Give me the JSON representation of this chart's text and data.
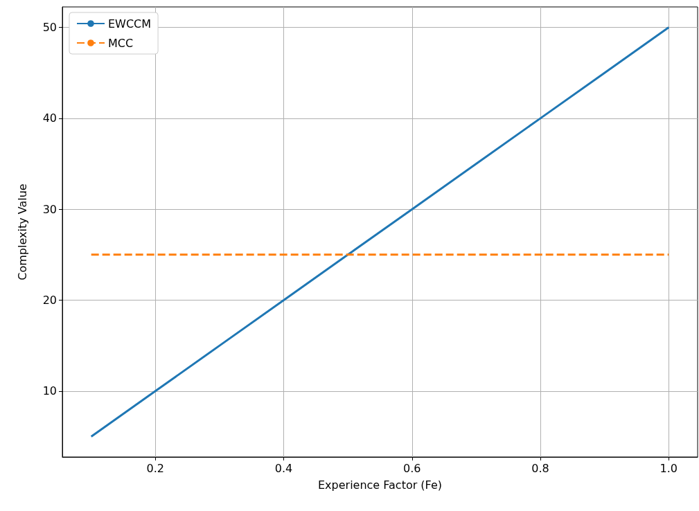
{
  "chart_data": {
    "type": "line",
    "xlabel": "Experience Factor (Fe)",
    "ylabel": "Complexity Value",
    "x": [
      0.1,
      0.2,
      0.3,
      0.4,
      0.5,
      0.6,
      0.7,
      0.8,
      0.9,
      1.0
    ],
    "series": [
      {
        "name": "EWCCM",
        "color": "#1f77b4",
        "line_style": "solid",
        "values": [
          5,
          10,
          15,
          20,
          25,
          30,
          35,
          40,
          45,
          50
        ]
      },
      {
        "name": "MCC",
        "color": "#ff7f0e",
        "line_style": "dashed",
        "values": [
          25,
          25,
          25,
          25,
          25,
          25,
          25,
          25,
          25,
          25
        ]
      }
    ],
    "xlim": [
      0.055,
      1.045
    ],
    "xticks": [
      0.2,
      0.4,
      0.6,
      0.8,
      {
        "value": 1.0,
        "label": "1.0"
      }
    ],
    "ylim": [
      2.75,
      52.25
    ],
    "yticks": [
      10,
      20,
      30,
      40,
      50
    ],
    "grid": true,
    "legend": "top left"
  }
}
